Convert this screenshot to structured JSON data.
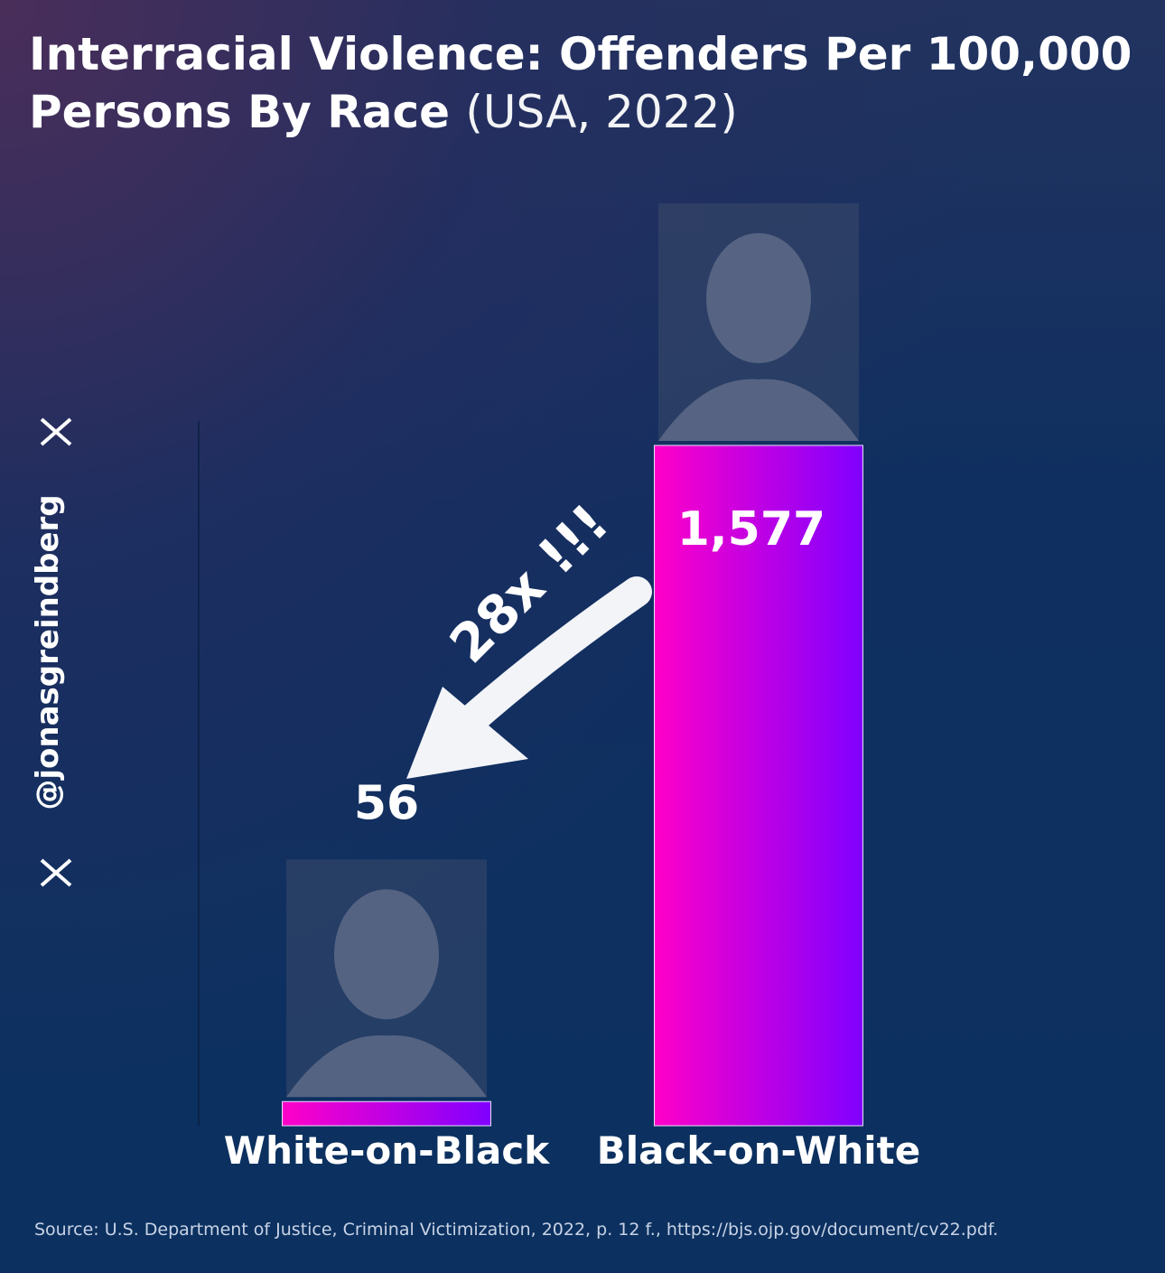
{
  "chart_data": {
    "type": "bar",
    "title": "Interracial Violence: Offenders Per 100,000 Persons By Race",
    "subtitle": "(USA, 2022)",
    "categories": [
      "White-on-Black",
      "Black-on-White"
    ],
    "values": [
      56,
      1577
    ],
    "value_labels": [
      "56",
      "1,577"
    ],
    "colors": [
      "#ff00c8",
      "#8000ff"
    ],
    "ylim": [
      0,
      1577
    ],
    "annotation": "28x !!!",
    "watermark": "@jonasgreindberg",
    "source": "Source: U.S. Department of Justice, Criminal Victimization, 2022, p. 12 f., https://bjs.ojp.gov/document/cv22.pdf."
  }
}
